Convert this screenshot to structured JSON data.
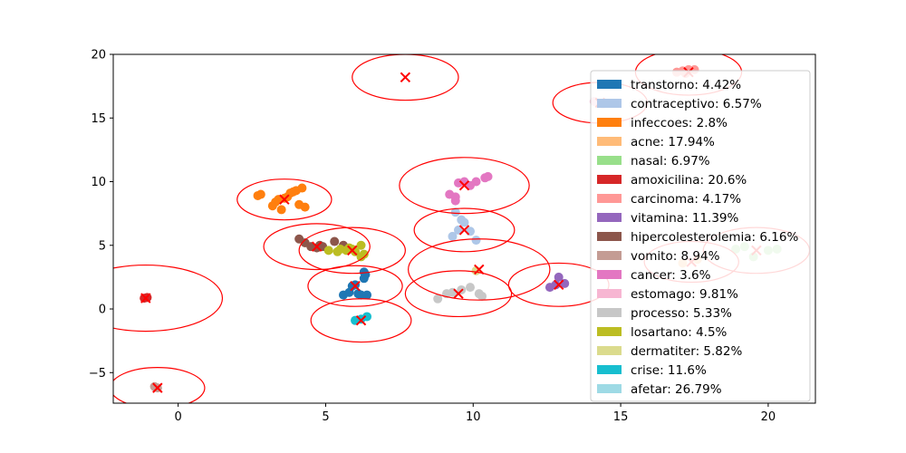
{
  "chart_data": {
    "type": "scatter",
    "xlim": [
      -2.2,
      21.6
    ],
    "ylim": [
      -7.4,
      20
    ],
    "x_ticks": [
      0,
      5,
      10,
      15,
      20
    ],
    "y_ticks": [
      -5,
      0,
      5,
      10,
      15,
      20
    ],
    "grid": false,
    "legend_placement": "right",
    "series": [
      {
        "name": "transtorno",
        "percent": "4.42%",
        "color": "#1f77b4",
        "centroid": [
          6.0,
          1.8
        ],
        "radius": 1.6,
        "points": [
          [
            5.6,
            1.1
          ],
          [
            5.8,
            1.3
          ],
          [
            5.9,
            1.8
          ],
          [
            6.0,
            1.9
          ],
          [
            6.1,
            1.2
          ],
          [
            6.2,
            1.1
          ],
          [
            6.3,
            2.4
          ],
          [
            6.3,
            2.9
          ],
          [
            6.4,
            1.1
          ],
          [
            6.35,
            2.7
          ]
        ]
      },
      {
        "name": "contraceptivo",
        "percent": "6.57%",
        "color": "#aec7e8",
        "centroid": [
          9.7,
          6.2
        ],
        "radius": 1.7,
        "points": [
          [
            9.3,
            5.7
          ],
          [
            9.4,
            7.6
          ],
          [
            9.6,
            7.0
          ],
          [
            9.7,
            6.8
          ],
          [
            9.9,
            6.1
          ],
          [
            10.1,
            5.4
          ],
          [
            9.5,
            6.2
          ]
        ]
      },
      {
        "name": "infeccoes",
        "percent": "2.8%",
        "color": "#ff7f0e",
        "centroid": [
          3.6,
          8.6
        ],
        "radius": 1.6,
        "points": [
          [
            2.7,
            8.9
          ],
          [
            2.8,
            9.0
          ],
          [
            3.2,
            8.1
          ],
          [
            3.3,
            8.4
          ],
          [
            3.4,
            8.6
          ],
          [
            3.5,
            7.8
          ],
          [
            3.6,
            8.7
          ],
          [
            3.7,
            8.8
          ],
          [
            3.8,
            9.1
          ],
          [
            4.0,
            9.3
          ],
          [
            4.2,
            9.5
          ],
          [
            4.1,
            8.2
          ],
          [
            4.3,
            8.0
          ],
          [
            3.9,
            9.2
          ]
        ]
      },
      {
        "name": "acne",
        "percent": "17.94%",
        "color": "#ffbb78",
        "centroid": [
          17.4,
          3.7
        ],
        "radius": 1.6,
        "points": [
          [
            17.1,
            3.6
          ],
          [
            17.6,
            3.9
          ]
        ]
      },
      {
        "name": "nasal",
        "percent": "6.97%",
        "color": "#98df8a",
        "centroid": [
          19.6,
          4.6
        ],
        "radius": 1.8,
        "points": [
          [
            18.9,
            4.7
          ],
          [
            19.2,
            4.9
          ],
          [
            19.5,
            4.1
          ],
          [
            20.0,
            4.6
          ],
          [
            20.3,
            4.7
          ]
        ]
      },
      {
        "name": "amoxicilina",
        "percent": "20.6%",
        "color": "#d62728",
        "centroid": [
          -1.1,
          0.85
        ],
        "radius": 2.6,
        "points": [
          [
            -1.15,
            0.85
          ],
          [
            -1.05,
            0.9
          ]
        ]
      },
      {
        "name": "carcinoma",
        "percent": "4.17%",
        "color": "#ff9896",
        "centroid": [
          17.3,
          18.6
        ],
        "radius": 1.8,
        "points": [
          [
            16.9,
            18.6
          ],
          [
            17.1,
            18.7
          ],
          [
            17.3,
            18.8
          ],
          [
            17.5,
            18.8
          ],
          [
            17.2,
            18.5
          ]
        ]
      },
      {
        "name": "vitamina",
        "percent": "11.39%",
        "color": "#9467bd",
        "centroid": [
          12.9,
          1.9
        ],
        "radius": 1.7,
        "points": [
          [
            12.6,
            1.7
          ],
          [
            12.9,
            2.5
          ],
          [
            13.1,
            2.0
          ],
          [
            12.8,
            1.9
          ]
        ]
      },
      {
        "name": "hipercolesterolemia",
        "percent": "6.16%",
        "color": "#8c564b",
        "centroid": [
          4.7,
          4.9
        ],
        "radius": 1.8,
        "points": [
          [
            4.1,
            5.5
          ],
          [
            4.3,
            5.2
          ],
          [
            4.5,
            4.9
          ],
          [
            4.7,
            4.8
          ],
          [
            4.8,
            5.0
          ],
          [
            4.9,
            4.9
          ],
          [
            5.3,
            5.3
          ],
          [
            5.6,
            5.0
          ]
        ]
      },
      {
        "name": "vomito",
        "percent": "8.94%",
        "color": "#c49c94",
        "centroid": [
          -0.7,
          -6.2
        ],
        "radius": 1.6,
        "points": [
          [
            -0.8,
            -6.1
          ],
          [
            -0.7,
            -6.2
          ]
        ]
      },
      {
        "name": "cancer",
        "percent": "3.6%",
        "color": "#e377c2",
        "centroid": [
          9.7,
          9.7
        ],
        "radius": 2.2,
        "points": [
          [
            9.2,
            9.0
          ],
          [
            9.4,
            8.5
          ],
          [
            9.5,
            9.9
          ],
          [
            9.7,
            10.0
          ],
          [
            9.9,
            9.7
          ],
          [
            10.1,
            10.0
          ],
          [
            10.4,
            10.3
          ],
          [
            10.5,
            10.4
          ],
          [
            9.4,
            8.8
          ]
        ]
      },
      {
        "name": "estomago",
        "percent": "9.81%",
        "color": "#f7b6d2",
        "centroid": [
          14.3,
          16.2
        ],
        "radius": 1.6,
        "points": [
          [
            14.1,
            16.3
          ],
          [
            14.4,
            16.1
          ]
        ]
      },
      {
        "name": "processo",
        "percent": "5.33%",
        "color": "#c7c7c7",
        "centroid": [
          9.5,
          1.2
        ],
        "radius": 1.8,
        "points": [
          [
            8.8,
            0.8
          ],
          [
            9.1,
            1.2
          ],
          [
            9.3,
            1.3
          ],
          [
            9.6,
            1.5
          ],
          [
            9.9,
            1.7
          ],
          [
            10.2,
            1.2
          ],
          [
            10.3,
            1.0
          ]
        ]
      },
      {
        "name": "losartano",
        "percent": "4.5%",
        "color": "#bcbd22",
        "centroid": [
          5.9,
          4.6
        ],
        "radius": 1.8,
        "points": [
          [
            5.1,
            4.6
          ],
          [
            5.4,
            4.5
          ],
          [
            5.5,
            4.7
          ],
          [
            5.7,
            4.6
          ],
          [
            5.8,
            4.8
          ],
          [
            5.9,
            4.7
          ],
          [
            6.0,
            4.5
          ],
          [
            6.2,
            4.1
          ],
          [
            6.2,
            5.0
          ],
          [
            6.3,
            4.3
          ]
        ]
      },
      {
        "name": "dermatiter",
        "percent": "5.82%",
        "color": "#dbdb8d",
        "centroid": [
          10.2,
          3.1
        ],
        "radius": 2.4,
        "points": [
          [
            10.1,
            3.0
          ]
        ]
      },
      {
        "name": "crise",
        "percent": "11.6%",
        "color": "#17becf",
        "centroid": [
          6.2,
          -0.9
        ],
        "radius": 1.7,
        "points": [
          [
            6.0,
            -0.9
          ],
          [
            6.4,
            -0.6
          ],
          [
            6.2,
            -0.8
          ]
        ]
      },
      {
        "name": "afetar",
        "percent": "26.79%",
        "color": "#9edae5",
        "centroid": [
          7.7,
          18.2
        ],
        "radius": 1.8,
        "points": []
      }
    ]
  }
}
